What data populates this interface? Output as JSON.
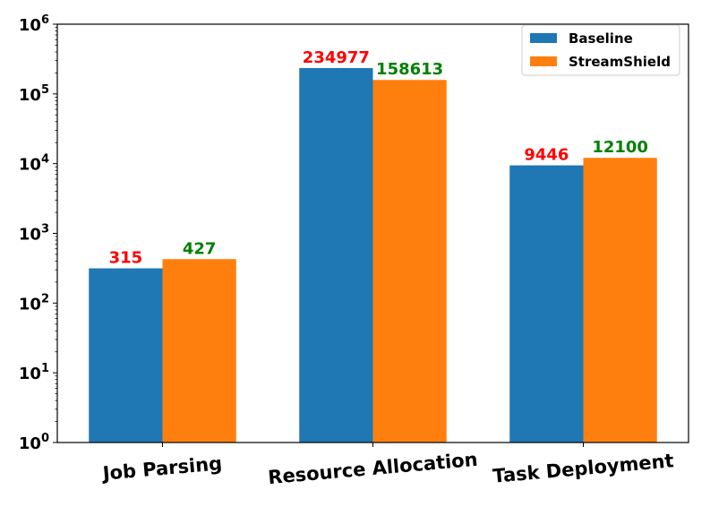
{
  "chart_data": {
    "type": "bar",
    "title": "",
    "xlabel": "",
    "ylabel": "",
    "yscale": "log",
    "ylim": [
      1,
      1000000
    ],
    "y_ticks": [
      {
        "value": 1,
        "base": "10",
        "exp": "0"
      },
      {
        "value": 10,
        "base": "10",
        "exp": "1"
      },
      {
        "value": 100,
        "base": "10",
        "exp": "2"
      },
      {
        "value": 1000,
        "base": "10",
        "exp": "3"
      },
      {
        "value": 10000,
        "base": "10",
        "exp": "4"
      },
      {
        "value": 100000,
        "base": "10",
        "exp": "5"
      },
      {
        "value": 1000000,
        "base": "10",
        "exp": "6"
      }
    ],
    "categories": [
      "Job Parsing",
      "Resource Allocation",
      "Task Deployment"
    ],
    "category_label_rotation_deg": -5,
    "series": [
      {
        "name": "Baseline",
        "values": [
          315,
          234977,
          9446
        ],
        "color": "#1f77b4",
        "label_color": "#ff0000"
      },
      {
        "name": "StreamShield",
        "values": [
          427,
          158613,
          12100
        ],
        "color": "#ff7f0e",
        "label_color": "#008000"
      }
    ],
    "grid": false,
    "legend": {
      "position": "top-right"
    }
  }
}
